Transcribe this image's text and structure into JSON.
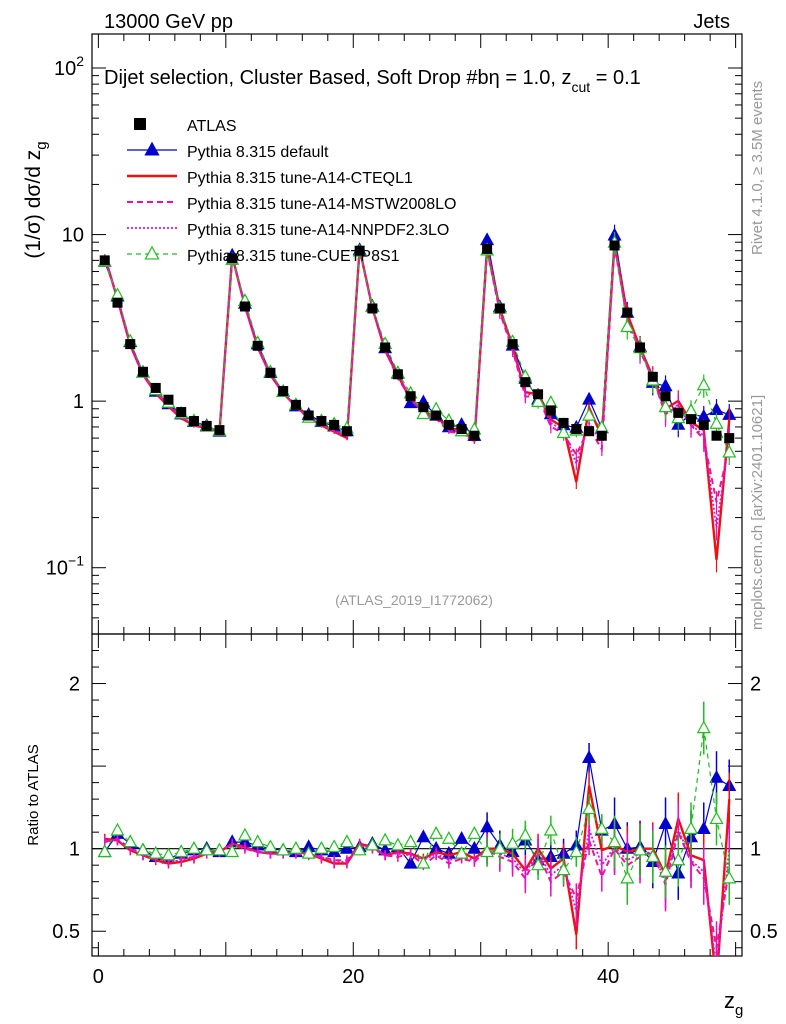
{
  "header": {
    "left": "13000 GeV pp",
    "right": "Jets",
    "side_label": "Rivet 4.1.0, ≥ 3.5M events",
    "side_source": "mcplots.cern.ch [arXiv:2401.10621]"
  },
  "colors": {
    "atlas": "#000000",
    "default": "#0000cc",
    "cteql1": "#ee1111",
    "mstw": "#ee1199",
    "nnpdf": "#dd11dd",
    "cuetp8s1": "#22bb22"
  },
  "chart_data": {
    "type": "line",
    "title": "Dijet selection, Cluster Based, Soft Drop #b",
    "title_suffix": "η = 1.0, z",
    "title_sub": "cut",
    "title_end": " = 0.1",
    "watermark": "(ATLAS_2019_I1772062)",
    "xlabel": "z",
    "xlabel_sub": "g",
    "ylabel": "(1/σ) dσ/d z",
    "ylabel_sub": "g",
    "ratio_ylabel": "Ratio to ATLAS",
    "xlim": [
      -0.5,
      50.5
    ],
    "ylim": [
      0.04,
      160
    ],
    "ratio_ylim": [
      0.35,
      2.3
    ],
    "x_ticks": [
      "0",
      "20",
      "40"
    ],
    "x_tick_values": [
      0,
      20,
      40
    ],
    "y_ticks": [
      {
        "base": "10",
        "exp": "2",
        "v": 100
      },
      {
        "base": "10",
        "exp": "",
        "v": 10
      },
      {
        "base": "1",
        "exp": "",
        "v": 1
      },
      {
        "base": "10",
        "exp": "−1",
        "v": 0.1
      }
    ],
    "ratio_ticks": [
      {
        "label": "2",
        "v": 2
      },
      {
        "label": "1",
        "v": 1
      },
      {
        "label": "0.5",
        "v": 0.5
      }
    ],
    "x": [
      0.5,
      1.5,
      2.5,
      3.5,
      4.5,
      5.5,
      6.5,
      7.5,
      8.5,
      9.5,
      10.5,
      11.5,
      12.5,
      13.5,
      14.5,
      15.5,
      16.5,
      17.5,
      18.5,
      19.5,
      20.5,
      21.5,
      22.5,
      23.5,
      24.5,
      25.5,
      26.5,
      27.5,
      28.5,
      29.5,
      30.5,
      31.5,
      32.5,
      33.5,
      34.5,
      35.5,
      36.5,
      37.5,
      38.5,
      39.5,
      40.5,
      41.5,
      42.5,
      43.5,
      44.5,
      45.5,
      46.5,
      47.5,
      48.5,
      49.5
    ],
    "atlas": [
      7.0,
      3.9,
      2.2,
      1.5,
      1.2,
      1.02,
      0.86,
      0.76,
      0.71,
      0.67,
      7.2,
      3.7,
      2.15,
      1.48,
      1.15,
      0.95,
      0.82,
      0.76,
      0.72,
      0.66,
      8.0,
      3.6,
      2.1,
      1.45,
      1.07,
      0.92,
      0.82,
      0.72,
      0.68,
      0.62,
      8.2,
      3.6,
      2.2,
      1.3,
      1.1,
      0.88,
      0.74,
      0.68,
      0.66,
      0.62,
      8.6,
      3.4,
      2.1,
      1.4,
      1.07,
      0.85,
      0.78,
      0.72,
      0.62,
      0.6
    ],
    "series": [
      {
        "name": "Pythia 8.315 default",
        "key": "default",
        "style": "solid-tri",
        "ratio": [
          0.98,
          1.09,
          1.03,
          0.99,
          0.95,
          0.94,
          0.97,
          0.99,
          1.0,
          0.98,
          1.04,
          1.04,
          1.02,
          1.0,
          0.99,
          0.98,
          1.01,
          0.99,
          0.98,
          1.0,
          1.01,
          1.03,
          0.99,
          1.01,
          0.91,
          1.07,
          1.0,
          0.97,
          1.06,
          1.0,
          1.13,
          1.02,
          0.98,
          1.05,
          0.93,
          0.95,
          0.97,
          1.02,
          1.55,
          1.11,
          1.15,
          1.0,
          1.01,
          0.92,
          1.15,
          0.85,
          1.07,
          1.12,
          1.43,
          1.38
        ]
      },
      {
        "name": "Pythia 8.315 tune-A14-CTEQL1",
        "key": "cteql1",
        "style": "solid-line",
        "ratio": [
          1.06,
          1.05,
          0.99,
          0.96,
          0.93,
          0.91,
          0.92,
          0.94,
          0.97,
          0.98,
          1.03,
          1.01,
          0.98,
          0.97,
          0.97,
          0.98,
          0.97,
          0.94,
          0.91,
          0.91,
          1.03,
          1.01,
          0.96,
          0.98,
          0.97,
          0.94,
          0.98,
          0.96,
          0.98,
          0.94,
          1.0,
          1.0,
          0.97,
          0.87,
          1.0,
          0.88,
          0.94,
          0.48,
          1.38,
          0.99,
          1.02,
          0.98,
          1.0,
          1.0,
          0.84,
          1.18,
          0.96,
          0.93,
          0.18,
          1.3
        ]
      },
      {
        "name": "Pythia 8.315 tune-A14-MSTW2008LO",
        "key": "mstw",
        "style": "dashed",
        "ratio": [
          1.04,
          1.06,
          1.0,
          0.97,
          0.95,
          0.93,
          0.94,
          0.95,
          0.98,
          0.99,
          1.02,
          1.0,
          0.98,
          0.97,
          0.98,
          0.97,
          0.96,
          0.95,
          0.93,
          0.93,
          1.02,
          1.0,
          0.96,
          0.95,
          0.97,
          0.9,
          0.96,
          0.91,
          0.94,
          0.92,
          0.99,
          0.95,
          0.92,
          0.82,
          0.97,
          0.8,
          0.86,
          0.7,
          1.05,
          0.83,
          1.0,
          0.9,
          0.95,
          0.98,
          0.78,
          1.1,
          0.92,
          0.82,
          0.4,
          0.88
        ]
      },
      {
        "name": "Pythia 8.315 tune-A14-NNPDF2.3LO",
        "key": "nnpdf",
        "style": "dotted",
        "ratio": [
          1.05,
          1.05,
          1.0,
          0.96,
          0.94,
          0.92,
          0.93,
          0.95,
          0.97,
          0.98,
          1.03,
          1.01,
          0.98,
          0.97,
          0.97,
          0.97,
          0.97,
          0.95,
          0.92,
          0.92,
          1.02,
          1.01,
          0.96,
          0.97,
          0.96,
          0.93,
          0.97,
          0.93,
          0.95,
          0.93,
          1.0,
          0.97,
          0.94,
          0.85,
          0.98,
          0.84,
          0.9,
          0.62,
          1.12,
          0.9,
          1.01,
          0.93,
          0.97,
          0.98,
          0.8,
          1.12,
          0.93,
          0.86,
          0.28,
          1.0
        ]
      },
      {
        "name": "Pythia 8.315 tune-CUETP8S1",
        "key": "cuetp8s1",
        "style": "dashed-tri",
        "ratio": [
          0.98,
          1.11,
          1.04,
          0.99,
          0.97,
          0.96,
          0.98,
          1.0,
          0.99,
          0.99,
          0.98,
          1.08,
          1.04,
          1.01,
          0.99,
          1.0,
          0.97,
          1.0,
          1.01,
          1.04,
          0.99,
          1.02,
          1.05,
          1.02,
          1.04,
          0.91,
          1.09,
          1.06,
          0.97,
          1.09,
          0.98,
          1.0,
          1.03,
          1.08,
          0.9,
          1.11,
          0.87,
          0.98,
          1.24,
          1.12,
          1.04,
          0.82,
          0.99,
          0.95,
          0.86,
          0.93,
          1.12,
          1.73,
          1.18,
          0.82
        ]
      }
    ]
  }
}
